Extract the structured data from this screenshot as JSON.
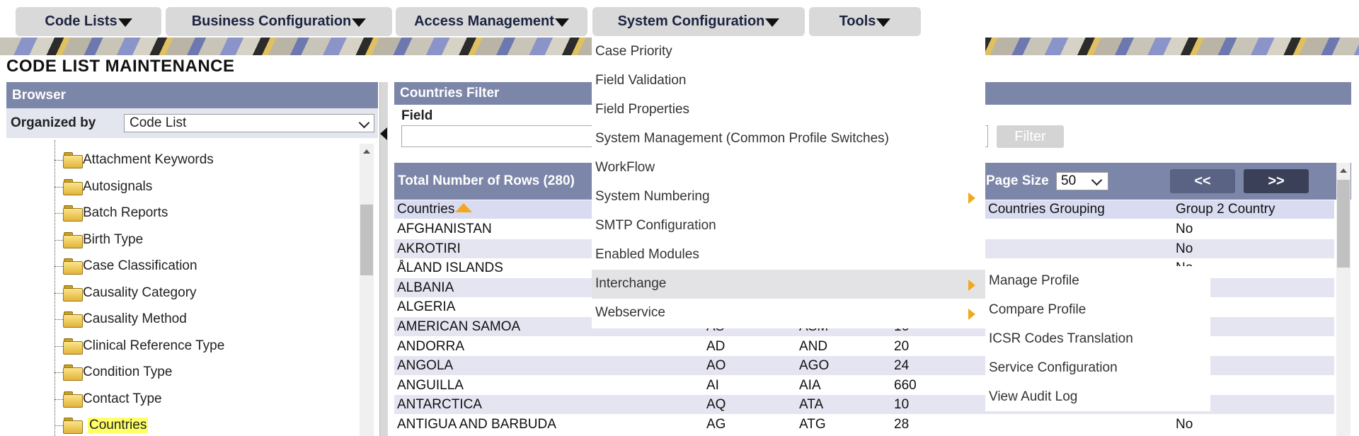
{
  "nav": [
    {
      "label": "Code Lists"
    },
    {
      "label": "Business Configuration"
    },
    {
      "label": "Access Management"
    },
    {
      "label": "System Configuration"
    },
    {
      "label": "Tools"
    }
  ],
  "page_title": "CODE LIST MAINTENANCE",
  "browser": {
    "title": "Browser",
    "organized_by_label": "Organized by",
    "organized_by_value": "Code List",
    "tree_items": [
      {
        "label": "Attachment Keywords"
      },
      {
        "label": "Autosignals"
      },
      {
        "label": "Batch Reports"
      },
      {
        "label": "Birth Type"
      },
      {
        "label": "Case Classification"
      },
      {
        "label": "Causality Category"
      },
      {
        "label": "Causality Method"
      },
      {
        "label": "Clinical Reference Type"
      },
      {
        "label": "Condition Type"
      },
      {
        "label": "Contact Type"
      },
      {
        "label": "Countries",
        "selected": true
      }
    ]
  },
  "filter": {
    "title": "Countries Filter",
    "field_label": "Field",
    "filter_button": "Filter"
  },
  "grid": {
    "total_rows_label": "Total Number of Rows (280)",
    "page_size_label": "Page Size",
    "page_size_value": "50",
    "prev_label": "<<",
    "next_label": ">>",
    "columns": {
      "countries": "Countries",
      "grouping": "Countries Grouping",
      "group2": "Group 2 Country"
    },
    "rows": [
      {
        "country": "AFGHANISTAN",
        "a2": "",
        "a3": "",
        "num": "",
        "group2": "No"
      },
      {
        "country": "AKROTIRI",
        "a2": "",
        "a3": "",
        "num": "",
        "group2": "No"
      },
      {
        "country": "ÅLAND ISLANDS",
        "a2": "",
        "a3": "",
        "num": "",
        "group2": "No"
      },
      {
        "country": "ALBANIA",
        "a2": "",
        "a3": "",
        "num": "",
        "group2": ""
      },
      {
        "country": "ALGERIA",
        "a2": "",
        "a3": "",
        "num": "",
        "group2": ""
      },
      {
        "country": "AMERICAN SAMOA",
        "a2": "AS",
        "a3": "ASM",
        "num": "16",
        "group2": ""
      },
      {
        "country": "ANDORRA",
        "a2": "AD",
        "a3": "AND",
        "num": "20",
        "group2": ""
      },
      {
        "country": "ANGOLA",
        "a2": "AO",
        "a3": "AGO",
        "num": "24",
        "group2": ""
      },
      {
        "country": "ANGUILLA",
        "a2": "AI",
        "a3": "AIA",
        "num": "660",
        "group2": ""
      },
      {
        "country": "ANTARCTICA",
        "a2": "AQ",
        "a3": "ATA",
        "num": "10",
        "group2": ""
      },
      {
        "country": "ANTIGUA AND BARBUDA",
        "a2": "AG",
        "a3": "ATG",
        "num": "28",
        "group2": "No"
      }
    ]
  },
  "system_config_menu": [
    {
      "label": "Case Priority"
    },
    {
      "label": "Field Validation"
    },
    {
      "label": "Field Properties"
    },
    {
      "label": "System Management (Common Profile Switches)"
    },
    {
      "label": "WorkFlow"
    },
    {
      "label": "System Numbering",
      "submenu": true
    },
    {
      "label": "SMTP Configuration"
    },
    {
      "label": "Enabled Modules"
    },
    {
      "label": "Interchange",
      "submenu": true,
      "active": true
    },
    {
      "label": "Webservice",
      "submenu": true
    }
  ],
  "interchange_submenu": [
    {
      "label": "Manage Profile"
    },
    {
      "label": "Compare Profile"
    },
    {
      "label": "ICSR Codes Translation"
    },
    {
      "label": "Service Configuration"
    },
    {
      "label": "View Audit Log"
    }
  ],
  "colors": {
    "header": "#7c86a8",
    "row_alt": "#e4e5f1",
    "highlight": "#ffff66",
    "arrow": "#f2a81c",
    "page_btn_prev": "#5b6384",
    "page_btn_next": "#3b4059"
  }
}
